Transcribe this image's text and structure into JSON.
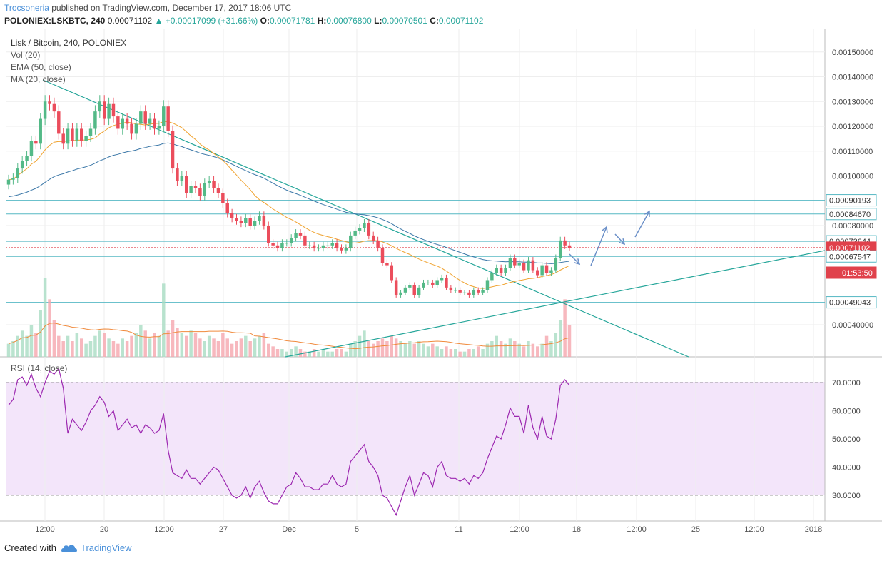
{
  "header": {
    "author": "Trocsoneria",
    "published": " published on TradingView.com, December 17, 2017 18:06 UTC",
    "symbol": "POLONIEX:LSKBTC, 240",
    "last": "0.00071102",
    "change_arrow": "▲",
    "change": "+0.00017099 (+31.66%)",
    "o_label": "O:",
    "o": "0.00071781",
    "h_label": "H:",
    "h": "0.00076800",
    "l_label": "L:",
    "l": "0.00070501",
    "c_label": "C:",
    "c": "0.00071102"
  },
  "legend": {
    "title": "Lisk / Bitcoin, 240, POLONIEX",
    "vol": "Vol (20)",
    "ema": "EMA (50, close)",
    "ma": "MA (20, close)"
  },
  "rsi_label": "RSI (14, close)",
  "footer": {
    "created": "Created with",
    "brand": "TradingView"
  },
  "colors": {
    "up": "#53b987",
    "down": "#eb4d5c",
    "ema": "#3c78a8",
    "ma": "#f0a330",
    "trend": "#26a69a",
    "hline": "#56b8c4",
    "rsi": "#9c27b0",
    "rsi_band": "#f3e5fa",
    "arrow": "#6a8fc8",
    "price_red": "#e0414b"
  },
  "chart_data": {
    "type": "candlestick",
    "symbol": "LSKBTC",
    "price_axis": {
      "ticks": [
        "0.00150000",
        "0.00140000",
        "0.00130000",
        "0.00120000",
        "0.00110000",
        "0.00100000",
        "0.00080000",
        "0.00040000"
      ],
      "tick_values": [
        0.0015,
        0.0014,
        0.0013,
        0.0012,
        0.0011,
        0.001,
        0.0008,
        0.0004
      ],
      "labels": [
        {
          "text": "0.00090193",
          "value": 0.00090193,
          "style": "hline"
        },
        {
          "text": "0.00084670",
          "value": 0.0008467,
          "style": "hline"
        },
        {
          "text": "0.00073644",
          "value": 0.00073644,
          "style": "hline"
        },
        {
          "text": "0.00071102",
          "value": 0.00071102,
          "style": "last"
        },
        {
          "text": "01:53:50",
          "value": 0.00067,
          "style": "countdown"
        },
        {
          "text": "0.00067547",
          "value": 0.00067547,
          "style": "hline"
        },
        {
          "text": "0.00049043",
          "value": 0.00049043,
          "style": "hline"
        }
      ]
    },
    "time_axis": [
      "12:00",
      "20",
      "12:00",
      "27",
      "Dec",
      "5",
      "11",
      "12:00",
      "18",
      "12:00",
      "25",
      "12:00",
      "2018"
    ],
    "rsi_axis": {
      "ticks": [
        "70.0000",
        "60.0000",
        "50.0000",
        "40.0000",
        "30.0000"
      ],
      "tick_values": [
        70,
        60,
        50,
        40,
        30
      ],
      "band": [
        30,
        70
      ]
    },
    "close": [
      0.000985,
      0.00099,
      0.00103,
      0.00106,
      0.00108,
      0.00114,
      0.00113,
      0.00123,
      0.0013,
      0.00129,
      0.00126,
      0.00117,
      0.00113,
      0.00119,
      0.00114,
      0.00119,
      0.00114,
      0.00116,
      0.00119,
      0.00126,
      0.0013,
      0.00123,
      0.00129,
      0.00124,
      0.00119,
      0.00123,
      0.00121,
      0.00117,
      0.00121,
      0.00126,
      0.00121,
      0.00123,
      0.00119,
      0.0012,
      0.00128,
      0.00118,
      0.00103,
      0.00098,
      0.001,
      0.00093,
      0.00096,
      0.00095,
      0.00092,
      0.00097,
      0.00098,
      0.00095,
      0.00093,
      0.00089,
      0.00085,
      0.00083,
      0.00082,
      0.00081,
      0.00083,
      0.0008,
      0.00082,
      0.00084,
      0.0008,
      0.00073,
      0.00072,
      0.00071,
      0.00073,
      0.00073,
      0.00075,
      0.00077,
      0.00076,
      0.00072,
      0.00072,
      0.00071,
      0.00071,
      0.00072,
      0.00072,
      0.00073,
      0.00071,
      0.0007,
      0.00071,
      0.00076,
      0.00078,
      0.00079,
      0.00081,
      0.00076,
      0.00074,
      0.00071,
      0.00065,
      0.00064,
      0.00058,
      0.00052,
      0.00053,
      0.00055,
      0.00056,
      0.00052,
      0.00055,
      0.00057,
      0.00057,
      0.00056,
      0.00058,
      0.00059,
      0.00055,
      0.00054,
      0.00054,
      0.00053,
      0.00053,
      0.00052,
      0.00054,
      0.00053,
      0.00054,
      0.00058,
      0.00061,
      0.00063,
      0.00061,
      0.00063,
      0.00067,
      0.00064,
      0.00065,
      0.00062,
      0.00066,
      0.00062,
      0.0006,
      0.00064,
      0.00061,
      0.00062,
      0.00067,
      0.00074,
      0.00072,
      0.00071102
    ],
    "rsi": [
      62,
      64,
      71,
      72,
      69,
      73,
      68,
      65,
      70,
      74,
      73,
      75,
      68,
      52,
      57,
      55,
      53,
      56,
      60,
      62,
      65,
      63,
      58,
      60,
      53,
      55,
      57,
      54,
      55,
      52,
      55,
      54,
      52,
      53,
      59,
      46,
      38,
      37,
      36,
      39,
      36,
      36,
      34,
      36,
      38,
      40,
      39,
      36,
      33,
      30,
      29,
      30,
      33,
      29,
      33,
      35,
      31,
      28,
      27,
      27,
      30,
      33,
      34,
      38,
      36,
      33,
      33,
      32,
      32,
      34,
      34,
      37,
      34,
      33,
      34,
      42,
      44,
      46,
      48,
      42,
      40,
      37,
      30,
      29,
      26,
      23,
      28,
      33,
      37,
      30,
      34,
      38,
      37,
      33,
      40,
      42,
      37,
      36,
      36,
      35,
      36,
      34,
      37,
      36,
      38,
      43,
      47,
      51,
      50,
      55,
      61,
      58,
      58,
      52,
      62,
      54,
      50,
      58,
      51,
      50,
      57,
      69,
      71,
      69
    ],
    "volume": [
      5,
      6,
      8,
      10,
      8,
      12,
      9,
      18,
      30,
      22,
      14,
      8,
      6,
      8,
      6,
      9,
      7,
      5,
      6,
      8,
      10,
      9,
      7,
      6,
      5,
      7,
      6,
      8,
      9,
      12,
      10,
      7,
      9,
      8,
      28,
      10,
      14,
      11,
      9,
      8,
      10,
      9,
      7,
      6,
      8,
      7,
      6,
      9,
      7,
      5,
      6,
      7,
      8,
      6,
      7,
      8,
      9,
      5,
      4,
      3,
      3,
      2,
      3,
      4,
      3,
      2,
      2,
      3,
      2,
      3,
      2,
      2,
      3,
      3,
      2,
      5,
      6,
      8,
      10,
      6,
      5,
      6,
      7,
      6,
      8,
      7,
      6,
      5,
      6,
      5,
      6,
      5,
      4,
      5,
      4,
      3,
      4,
      3,
      3,
      2,
      2,
      3,
      3,
      4,
      3,
      5,
      6,
      8,
      6,
      5,
      7,
      6,
      5,
      4,
      6,
      5,
      4,
      5,
      8,
      6,
      9,
      14,
      22,
      12
    ],
    "ema50_label": "EMA (50, close)",
    "ma20_label": "MA (20, close)",
    "horizontal_levels": [
      0.00090193,
      0.0008467,
      0.00073644,
      0.00067547,
      0.00049043
    ],
    "annotations": [
      "projection arrows up/down/up after breakout"
    ]
  }
}
